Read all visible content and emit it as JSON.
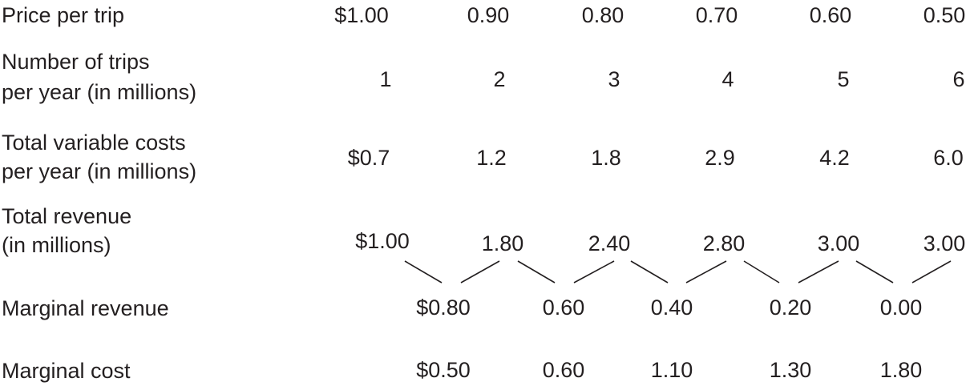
{
  "table": {
    "rows": [
      {
        "key": "price",
        "label": [
          "Price per trip"
        ],
        "values": [
          "$1.00",
          "0.90",
          "0.80",
          "0.70",
          "0.60",
          "0.50"
        ]
      },
      {
        "key": "trips",
        "label": [
          "Number of trips",
          "per year (in millions)"
        ],
        "values": [
          "1",
          "2",
          "3",
          "4",
          "5",
          "6"
        ]
      },
      {
        "key": "tvc",
        "label": [
          "Total variable costs",
          "per year (in millions)"
        ],
        "values": [
          "$0.7",
          "1.2",
          "1.8",
          "2.9",
          "4.2",
          "6.0"
        ]
      },
      {
        "key": "tr",
        "label": [
          "Total revenue",
          "(in millions)"
        ],
        "values": [
          "$1.00",
          "1.80",
          "2.40",
          "2.80",
          "3.00",
          "3.00"
        ]
      },
      {
        "key": "mr",
        "label": [
          "Marginal revenue"
        ],
        "values": [
          "$0.80",
          "0.60",
          "0.40",
          "0.20",
          "0.00"
        ]
      },
      {
        "key": "mc",
        "label": [
          "Marginal cost"
        ],
        "values": [
          "$0.50",
          "0.60",
          "1.10",
          "1.30",
          "1.80"
        ]
      }
    ]
  }
}
